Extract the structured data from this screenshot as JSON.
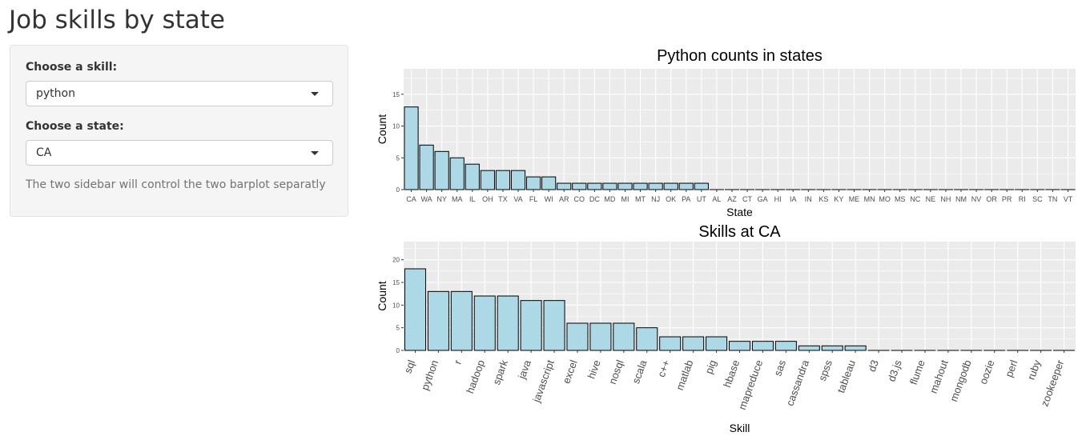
{
  "app": {
    "title": "Job skills by state"
  },
  "sidebar": {
    "skill_label": "Choose a skill:",
    "skill_value": "python",
    "state_label": "Choose a state:",
    "state_value": "CA",
    "help_text": "The two sidebar will control the two barplot separatly"
  },
  "colors": {
    "bar_fill": "#add8e6",
    "bar_stroke": "#000000",
    "panel": "#ebebeb",
    "grid": "#ffffff"
  },
  "chart_data": [
    {
      "type": "bar",
      "title": "Python counts in states",
      "xlabel": "State",
      "ylabel": "Count",
      "ylim": [
        0,
        19
      ],
      "yticks": [
        0,
        5,
        10,
        15
      ],
      "rotate_labels": false,
      "categories": [
        "CA",
        "WA",
        "NY",
        "MA",
        "IL",
        "OH",
        "TX",
        "VA",
        "FL",
        "WI",
        "AR",
        "CO",
        "DC",
        "MD",
        "MI",
        "MT",
        "NJ",
        "OK",
        "PA",
        "UT",
        "AL",
        "AZ",
        "CT",
        "GA",
        "HI",
        "IA",
        "IN",
        "KS",
        "KY",
        "ME",
        "MN",
        "MO",
        "MS",
        "NC",
        "NE",
        "NH",
        "NM",
        "NV",
        "OR",
        "PR",
        "RI",
        "SC",
        "TN",
        "VT"
      ],
      "values": [
        13,
        7,
        6,
        5,
        4,
        3,
        3,
        3,
        2,
        2,
        1,
        1,
        1,
        1,
        1,
        1,
        1,
        1,
        1,
        1,
        0,
        0,
        0,
        0,
        0,
        0,
        0,
        0,
        0,
        0,
        0,
        0,
        0,
        0,
        0,
        0,
        0,
        0,
        0,
        0,
        0,
        0,
        0,
        0
      ]
    },
    {
      "type": "bar",
      "title": "Skills at  CA",
      "xlabel": "Skill",
      "ylabel": "Count",
      "ylim": [
        0,
        24
      ],
      "yticks": [
        0,
        5,
        10,
        15,
        20
      ],
      "rotate_labels": true,
      "categories": [
        "sql",
        "python",
        "r",
        "hadoop",
        "spark",
        "java",
        "javascript",
        "excel",
        "hive",
        "nosql",
        "scala",
        "c++",
        "matlab",
        "pig",
        "hbase",
        "mapreduce",
        "sas",
        "cassandra",
        "spss",
        "tableau",
        "d3",
        "d3.js",
        "flume",
        "mahout",
        "mongodb",
        "oozie",
        "perl",
        "ruby",
        "zookeeper"
      ],
      "values": [
        18,
        13,
        13,
        12,
        12,
        11,
        11,
        6,
        6,
        6,
        5,
        3,
        3,
        3,
        2,
        2,
        2,
        1,
        1,
        1,
        0,
        0,
        0,
        0,
        0,
        0,
        0,
        0,
        0
      ]
    }
  ]
}
